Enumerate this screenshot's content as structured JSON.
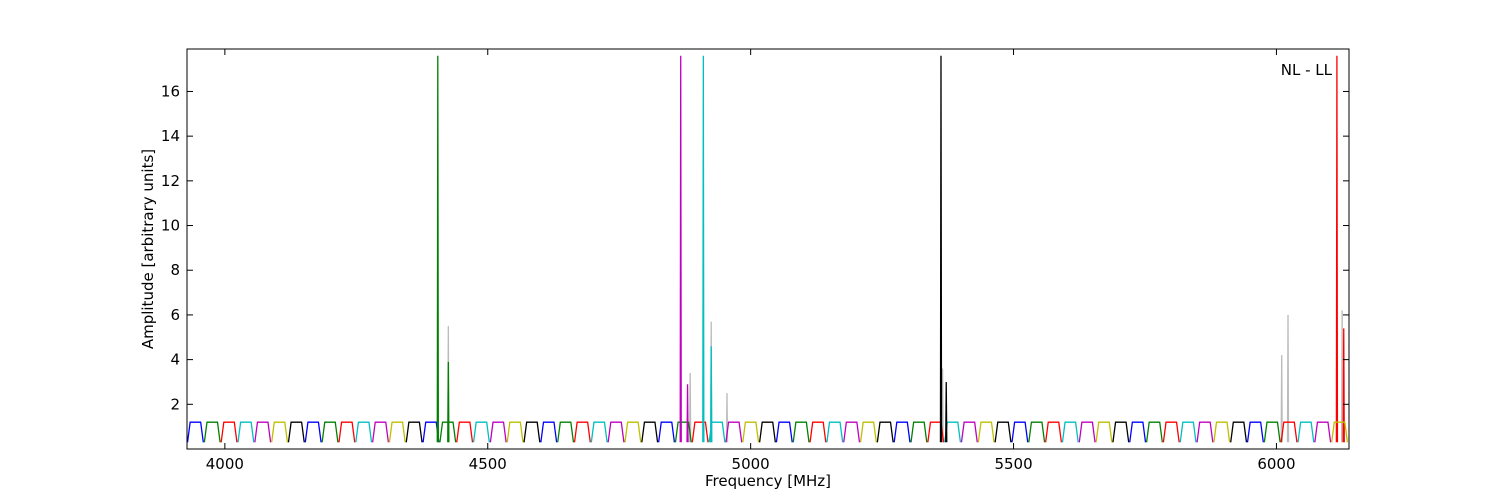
{
  "chart_data": {
    "type": "line",
    "xlabel": "Frequency [MHz]",
    "ylabel": "Amplitude [arbitrary units]",
    "annotation": "NL - LL",
    "xlim": [
      3928,
      6138
    ],
    "ylim": [
      0,
      17.9
    ],
    "xticks": [
      4000,
      4500,
      5000,
      5500,
      6000
    ],
    "yticks": [
      2,
      4,
      6,
      8,
      10,
      12,
      14,
      16
    ],
    "series": [
      {
        "color": "#bbbbbb",
        "x": [
          4424,
          4425,
          4426,
          null,
          4884,
          4885,
          4886,
          null,
          4924,
          4925,
          4926,
          null,
          4954,
          4955,
          4956,
          null,
          5364,
          5365,
          5366,
          null,
          6009,
          6010,
          6011,
          null,
          6021,
          6022,
          6023,
          null,
          6124,
          6125,
          6126
        ],
        "values": [
          0.3,
          5.5,
          0.3,
          null,
          0.3,
          3.4,
          0.3,
          null,
          0.3,
          5.7,
          0.3,
          null,
          0.3,
          2.5,
          0.3,
          null,
          0.3,
          3.6,
          0.3,
          null,
          0.3,
          4.2,
          0.3,
          null,
          0.3,
          6.0,
          0.3,
          null,
          0.3,
          6.2,
          0.3
        ]
      },
      {
        "color": "#0000ff",
        "x": [
          3929,
          3934,
          3954,
          3959,
          null,
          4153,
          4158,
          4178,
          4183,
          null,
          4377,
          4382,
          4402,
          4407,
          null,
          4601,
          4606,
          4626,
          4631,
          null,
          4825,
          4830,
          4850,
          4855,
          null,
          5049,
          5054,
          5074,
          5079,
          null,
          5273,
          5278,
          5298,
          5303,
          null,
          5497,
          5502,
          5522,
          5527,
          null,
          5721,
          5726,
          5746,
          5751,
          null,
          5945,
          5950,
          5970,
          5975
        ],
        "values": [
          0.3,
          1.2,
          1.2,
          0.3,
          null,
          0.3,
          1.2,
          1.2,
          0.3,
          null,
          0.3,
          1.2,
          1.2,
          0.3,
          null,
          0.3,
          1.2,
          1.2,
          0.3,
          null,
          0.3,
          1.2,
          1.2,
          0.3,
          null,
          0.3,
          1.2,
          1.2,
          0.3,
          null,
          0.3,
          1.2,
          1.2,
          0.3,
          null,
          0.3,
          1.2,
          1.2,
          0.3,
          null,
          0.3,
          1.2,
          1.2,
          0.3,
          null,
          0.3,
          1.2,
          1.2,
          0.3
        ]
      },
      {
        "color": "#008000",
        "x": [
          3961,
          3966,
          3986,
          3991,
          null,
          4185,
          4190,
          4210,
          4215,
          null,
          4409,
          4414,
          4434,
          4439,
          null,
          4633,
          4638,
          4658,
          4663,
          null,
          4857,
          4862,
          4882,
          4887,
          null,
          5081,
          5086,
          5106,
          5111,
          null,
          5305,
          5310,
          5330,
          5335,
          null,
          5529,
          5534,
          5554,
          5559,
          null,
          5753,
          5758,
          5778,
          5783,
          null,
          5977,
          5982,
          6002,
          6007,
          null,
          4404,
          4405,
          4406,
          null,
          4424,
          4425,
          4426
        ],
        "values": [
          0.3,
          1.2,
          1.2,
          0.3,
          null,
          0.3,
          1.2,
          1.2,
          0.3,
          null,
          0.3,
          1.2,
          1.2,
          0.3,
          null,
          0.3,
          1.2,
          1.2,
          0.3,
          null,
          0.3,
          1.2,
          1.2,
          0.3,
          null,
          0.3,
          1.2,
          1.2,
          0.3,
          null,
          0.3,
          1.2,
          1.2,
          0.3,
          null,
          0.3,
          1.2,
          1.2,
          0.3,
          null,
          0.3,
          1.2,
          1.2,
          0.3,
          null,
          0.3,
          1.2,
          1.2,
          0.3,
          null,
          0.3,
          17.6,
          0.3,
          null,
          0.3,
          3.9,
          0.3
        ]
      },
      {
        "color": "#ff0000",
        "x": [
          3993,
          3998,
          4018,
          4023,
          null,
          4217,
          4222,
          4242,
          4247,
          null,
          4441,
          4446,
          4466,
          4471,
          null,
          4665,
          4670,
          4690,
          4695,
          null,
          4889,
          4894,
          4914,
          4919,
          null,
          5113,
          5118,
          5138,
          5143,
          null,
          5337,
          5342,
          5362,
          5367,
          null,
          5561,
          5566,
          5586,
          5591,
          null,
          5785,
          5790,
          5810,
          5815,
          null,
          6009,
          6014,
          6034,
          6039,
          null,
          6114,
          6115,
          6116,
          null,
          6127,
          6128,
          6129
        ],
        "values": [
          0.3,
          1.2,
          1.2,
          0.3,
          null,
          0.3,
          1.2,
          1.2,
          0.3,
          null,
          0.3,
          1.2,
          1.2,
          0.3,
          null,
          0.3,
          1.2,
          1.2,
          0.3,
          null,
          0.3,
          1.2,
          1.2,
          0.3,
          null,
          0.3,
          1.2,
          1.2,
          0.3,
          null,
          0.3,
          1.2,
          1.2,
          0.3,
          null,
          0.3,
          1.2,
          1.2,
          0.3,
          null,
          0.3,
          1.2,
          1.2,
          0.3,
          null,
          0.3,
          1.2,
          1.2,
          0.3,
          null,
          0.3,
          17.6,
          0.3,
          null,
          0.3,
          5.4,
          0.3
        ]
      },
      {
        "color": "#00bfbf",
        "x": [
          4025,
          4030,
          4050,
          4055,
          null,
          4249,
          4254,
          4274,
          4279,
          null,
          4473,
          4478,
          4498,
          4503,
          null,
          4697,
          4702,
          4722,
          4727,
          null,
          4921,
          4926,
          4946,
          4951,
          null,
          5145,
          5150,
          5170,
          5175,
          null,
          5369,
          5374,
          5394,
          5399,
          null,
          5593,
          5598,
          5618,
          5623,
          null,
          5817,
          5822,
          5842,
          5847,
          null,
          6041,
          6046,
          6066,
          6071,
          null,
          4909,
          4910,
          4911,
          null,
          4924,
          4925,
          4926
        ],
        "values": [
          0.3,
          1.2,
          1.2,
          0.3,
          null,
          0.3,
          1.2,
          1.2,
          0.3,
          null,
          0.3,
          1.2,
          1.2,
          0.3,
          null,
          0.3,
          1.2,
          1.2,
          0.3,
          null,
          0.3,
          1.2,
          1.2,
          0.3,
          null,
          0.3,
          1.2,
          1.2,
          0.3,
          null,
          0.3,
          1.2,
          1.2,
          0.3,
          null,
          0.3,
          1.2,
          1.2,
          0.3,
          null,
          0.3,
          1.2,
          1.2,
          0.3,
          null,
          0.3,
          1.2,
          1.2,
          0.3,
          null,
          0.3,
          17.6,
          0.3,
          null,
          0.3,
          4.6,
          0.3
        ]
      },
      {
        "color": "#bf00bf",
        "x": [
          4057,
          4062,
          4082,
          4087,
          null,
          4281,
          4286,
          4306,
          4311,
          null,
          4505,
          4510,
          4530,
          4535,
          null,
          4729,
          4734,
          4754,
          4759,
          null,
          4953,
          4958,
          4978,
          4983,
          null,
          5177,
          5182,
          5202,
          5207,
          null,
          5401,
          5406,
          5426,
          5431,
          null,
          5625,
          5630,
          5650,
          5655,
          null,
          5849,
          5854,
          5874,
          5879,
          null,
          6073,
          6078,
          6098,
          6103,
          null,
          4866,
          4867,
          4868,
          null,
          4879,
          4880,
          4881
        ],
        "values": [
          0.3,
          1.2,
          1.2,
          0.3,
          null,
          0.3,
          1.2,
          1.2,
          0.3,
          null,
          0.3,
          1.2,
          1.2,
          0.3,
          null,
          0.3,
          1.2,
          1.2,
          0.3,
          null,
          0.3,
          1.2,
          1.2,
          0.3,
          null,
          0.3,
          1.2,
          1.2,
          0.3,
          null,
          0.3,
          1.2,
          1.2,
          0.3,
          null,
          0.3,
          1.2,
          1.2,
          0.3,
          null,
          0.3,
          1.2,
          1.2,
          0.3,
          null,
          0.3,
          1.2,
          1.2,
          0.3,
          null,
          0.3,
          17.6,
          0.3,
          null,
          0.3,
          2.9,
          0.3
        ]
      },
      {
        "color": "#bfbf00",
        "x": [
          4089,
          4094,
          4114,
          4119,
          null,
          4313,
          4318,
          4338,
          4343,
          null,
          4537,
          4542,
          4562,
          4567,
          null,
          4761,
          4766,
          4786,
          4791,
          null,
          4985,
          4990,
          5010,
          5015,
          null,
          5209,
          5214,
          5234,
          5239,
          null,
          5433,
          5438,
          5458,
          5463,
          null,
          5657,
          5662,
          5682,
          5687,
          null,
          5881,
          5886,
          5906,
          5911,
          null,
          6105,
          6110,
          6130,
          6135
        ],
        "values": [
          0.3,
          1.2,
          1.2,
          0.3,
          null,
          0.3,
          1.2,
          1.2,
          0.3,
          null,
          0.3,
          1.2,
          1.2,
          0.3,
          null,
          0.3,
          1.2,
          1.2,
          0.3,
          null,
          0.3,
          1.2,
          1.2,
          0.3,
          null,
          0.3,
          1.2,
          1.2,
          0.3,
          null,
          0.3,
          1.2,
          1.2,
          0.3,
          null,
          0.3,
          1.2,
          1.2,
          0.3,
          null,
          0.3,
          1.2,
          1.2,
          0.3,
          null,
          0.3,
          1.2,
          1.2,
          0.3
        ]
      },
      {
        "color": "#000000",
        "x": [
          4121,
          4126,
          4146,
          4151,
          null,
          4345,
          4350,
          4370,
          4375,
          null,
          4569,
          4574,
          4594,
          4599,
          null,
          4793,
          4798,
          4818,
          4823,
          null,
          5017,
          5022,
          5042,
          5047,
          null,
          5241,
          5246,
          5266,
          5271,
          null,
          5465,
          5470,
          5490,
          5495,
          null,
          5689,
          5694,
          5714,
          5719,
          null,
          5913,
          5918,
          5938,
          5943,
          null,
          5361,
          5362,
          5363,
          null,
          5371,
          5372,
          5373
        ],
        "values": [
          0.3,
          1.2,
          1.2,
          0.3,
          null,
          0.3,
          1.2,
          1.2,
          0.3,
          null,
          0.3,
          1.2,
          1.2,
          0.3,
          null,
          0.3,
          1.2,
          1.2,
          0.3,
          null,
          0.3,
          1.2,
          1.2,
          0.3,
          null,
          0.3,
          1.2,
          1.2,
          0.3,
          null,
          0.3,
          1.2,
          1.2,
          0.3,
          null,
          0.3,
          1.2,
          1.2,
          0.3,
          null,
          0.3,
          1.2,
          1.2,
          0.3,
          null,
          0.3,
          17.6,
          0.3,
          null,
          0.3,
          3.0,
          0.3
        ]
      }
    ]
  }
}
